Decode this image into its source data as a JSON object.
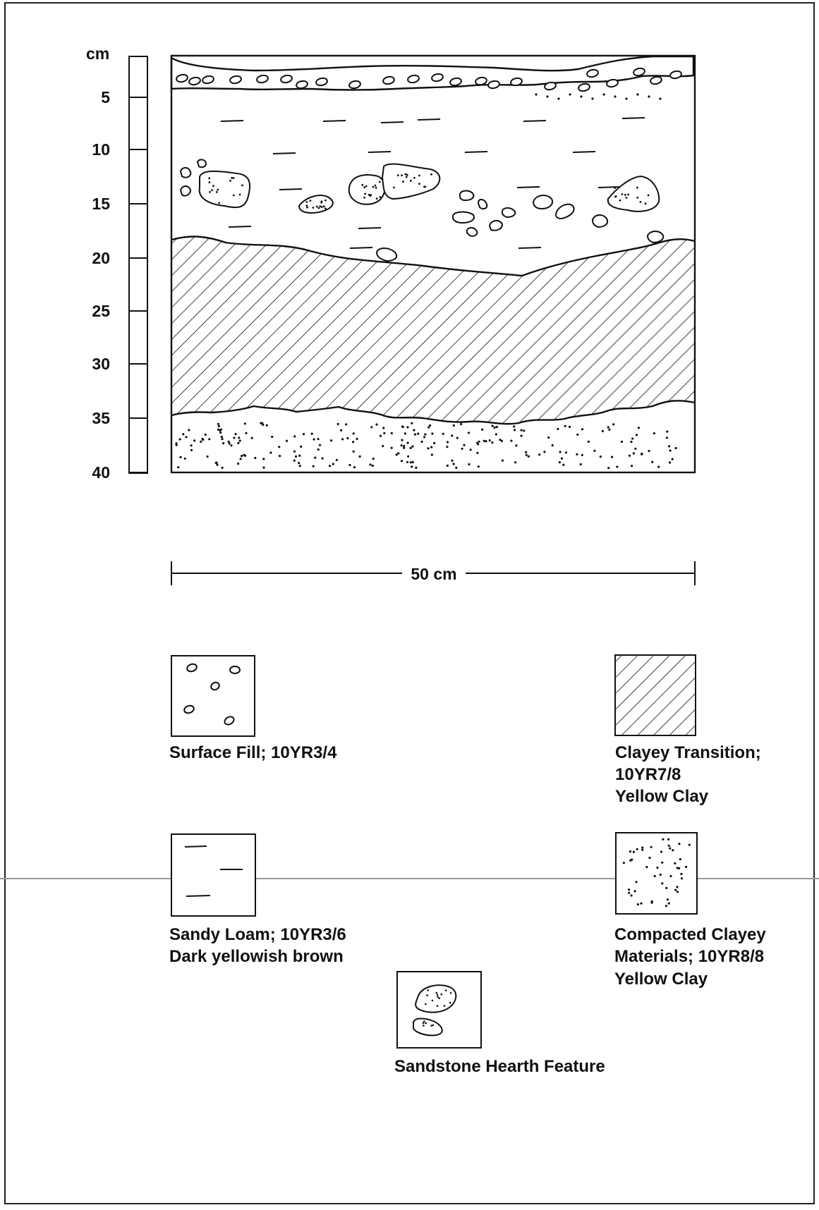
{
  "depth_scale": {
    "unit": "cm",
    "ticks": [
      "5",
      "10",
      "15",
      "20",
      "25",
      "30",
      "35",
      "40"
    ]
  },
  "width_scale": {
    "label": "50 cm"
  },
  "legend": [
    {
      "id": "surface-fill",
      "lines": [
        "Surface Fill; 10YR3/4"
      ]
    },
    {
      "id": "clayey-transition",
      "lines": [
        "Clayey Transition;",
        "10YR7/8",
        "Yellow Clay"
      ]
    },
    {
      "id": "sandy-loam",
      "lines": [
        "Sandy Loam; 10YR3/6",
        "Dark yellowish brown"
      ]
    },
    {
      "id": "compacted-clayey",
      "lines": [
        "Compacted Clayey",
        "Materials; 10YR8/8",
        "Yellow Clay"
      ]
    },
    {
      "id": "sandstone-hearth",
      "lines": [
        "Sandstone Hearth Feature"
      ]
    }
  ]
}
